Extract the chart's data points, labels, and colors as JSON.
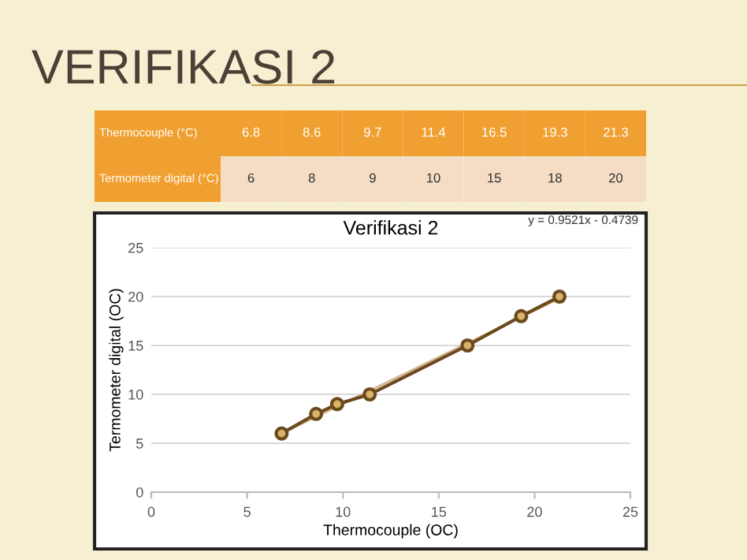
{
  "chart_data": [
    {
      "type": "other",
      "title": "VERIFIKASI 2",
      "annotations": [
        "Thermocouple (°C)",
        "6.8",
        "8.6",
        "9.7",
        "11.4",
        "16.5",
        "19.3",
        "21.3",
        "Termometer digital (°C)",
        "6",
        "8",
        "9",
        "10",
        "15",
        "18",
        "20"
      ]
    },
    {
      "type": "line",
      "title": "Verifikasi 2",
      "xlabel": "Thermocouple (OC)",
      "ylabel": "Termometer digital (OC)",
      "annotations": [
        "y = 0.9521x - 0.4739"
      ],
      "x": [
        6.8,
        8.6,
        9.7,
        11.4,
        16.5,
        19.3,
        21.3
      ],
      "series": [
        {
          "color": "#6b4a1e",
          "values": [
            6,
            8,
            9,
            10,
            15,
            18,
            20
          ]
        },
        {
          "type": "line",
          "color": "#d2b48c",
          "marker": "none",
          "x": [
            6.8,
            21.3
          ],
          "values": [
            6.0,
            19.8
          ]
        }
      ],
      "xlim": [
        0,
        25
      ],
      "xticks": [
        0,
        5,
        10,
        15,
        20,
        25
      ],
      "ylim": [
        0,
        25
      ],
      "yticks": [
        0,
        5,
        10,
        15,
        20,
        25
      ],
      "grid": "y",
      "marker": "circle",
      "line_style": "solid"
    }
  ]
}
